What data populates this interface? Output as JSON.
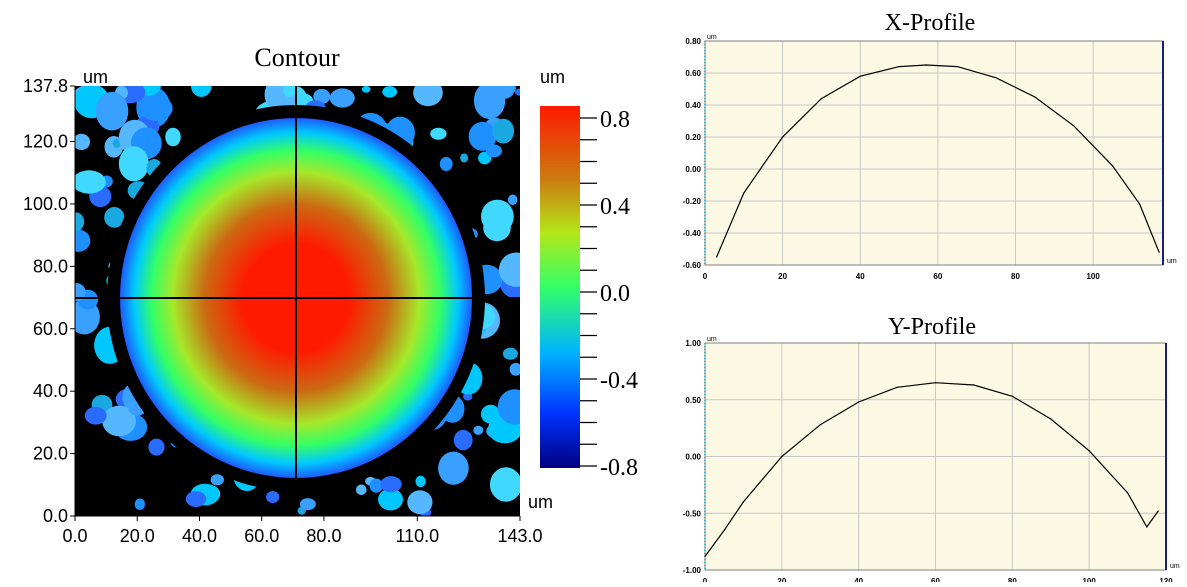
{
  "contour": {
    "title": "Contour",
    "x_unit": "um",
    "y_unit": "um",
    "cb_unit": "um",
    "cb_unit_bottom": "um",
    "x_ticks": [
      "0.0",
      "20.0",
      "40.0",
      "60.0",
      "80.0",
      "110.0",
      "143.0"
    ],
    "y_ticks": [
      "0.0",
      "20.0",
      "40.0",
      "60.0",
      "80.0",
      "100.0",
      "120.0",
      "137.8"
    ],
    "colorbar_ticks": [
      "0.8",
      "0.4",
      "0.0",
      "-0.4",
      "-0.8"
    ],
    "colorbar_range": [
      -0.8,
      0.8
    ],
    "colors": {
      "high": "#ff1a00",
      "mid": "#33ff66",
      "low": "#000080",
      "background": "#000000"
    }
  },
  "chart_data": [
    {
      "type": "heatmap",
      "title": "Contour",
      "xlabel": "um",
      "ylabel": "um",
      "xlim": [
        0,
        143
      ],
      "ylim": [
        0,
        137.8
      ],
      "colorbar": {
        "label": "um",
        "range": [
          -0.8,
          0.8
        ],
        "ticks": [
          0.8,
          0.4,
          0.0,
          -0.4,
          -0.8
        ]
      },
      "crosshair": {
        "x": 71,
        "y": 71
      },
      "feature": {
        "shape": "ellipse",
        "center": [
          71,
          71
        ],
        "radius_x": 57,
        "radius_y": 59,
        "peak": 0.65
      }
    },
    {
      "type": "line",
      "title": "X-Profile",
      "xlabel": "um",
      "ylabel": "um",
      "xlim": [
        0,
        118
      ],
      "ylim": [
        -0.6,
        0.8
      ],
      "x_ticks": [
        "0",
        "20",
        "40",
        "60",
        "80",
        "100"
      ],
      "y_ticks": [
        "0.80",
        "0.60",
        "0.40",
        "0.20",
        "0.00",
        "-0.20",
        "-0.40",
        "-0.60"
      ],
      "x": [
        3,
        10,
        20,
        30,
        40,
        50,
        57,
        65,
        75,
        85,
        95,
        105,
        112,
        117
      ],
      "y": [
        -0.55,
        -0.15,
        0.2,
        0.44,
        0.58,
        0.64,
        0.65,
        0.64,
        0.57,
        0.45,
        0.27,
        0.02,
        -0.22,
        -0.52
      ]
    },
    {
      "type": "line",
      "title": "Y-Profile",
      "xlabel": "um",
      "ylabel": "um",
      "xlim": [
        0,
        120
      ],
      "ylim": [
        -1.0,
        1.0
      ],
      "x_ticks": [
        "0",
        "20",
        "40",
        "60",
        "80",
        "100",
        "120"
      ],
      "y_ticks": [
        "1.00",
        "0.50",
        "0.00",
        "-0.50",
        "-1.00"
      ],
      "x": [
        0,
        5,
        10,
        20,
        30,
        40,
        50,
        60,
        70,
        80,
        90,
        100,
        110,
        115,
        118
      ],
      "y": [
        -0.88,
        -0.65,
        -0.4,
        0.0,
        0.28,
        0.48,
        0.61,
        0.65,
        0.63,
        0.53,
        0.33,
        0.05,
        -0.32,
        -0.62,
        -0.48
      ]
    }
  ]
}
